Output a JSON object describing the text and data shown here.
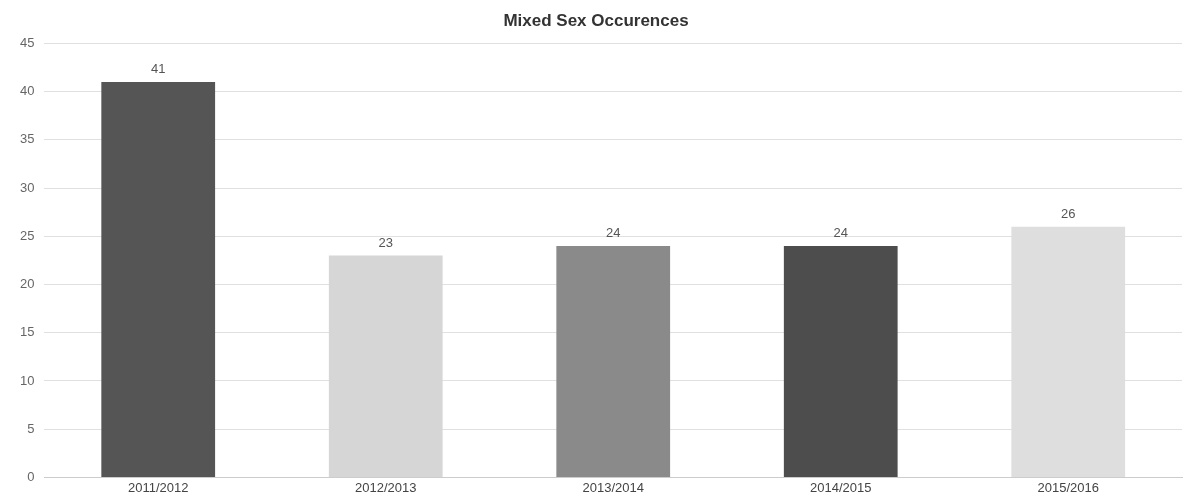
{
  "chart_data": {
    "type": "bar",
    "title": "Mixed Sex Occurences",
    "categories": [
      "2011/2012",
      "2012/2013",
      "2013/2014",
      "2014/2015",
      "2015/2016"
    ],
    "values": [
      41,
      23,
      24,
      24,
      26
    ],
    "colors": [
      "#555555",
      "#d6d6d6",
      "#8a8a8a",
      "#4d4d4d",
      "#dedede"
    ],
    "ylim": [
      0,
      45
    ],
    "yticks": [
      0,
      5,
      10,
      15,
      20,
      25,
      30,
      35,
      40,
      45
    ],
    "grid": "y",
    "data_labels": true
  }
}
